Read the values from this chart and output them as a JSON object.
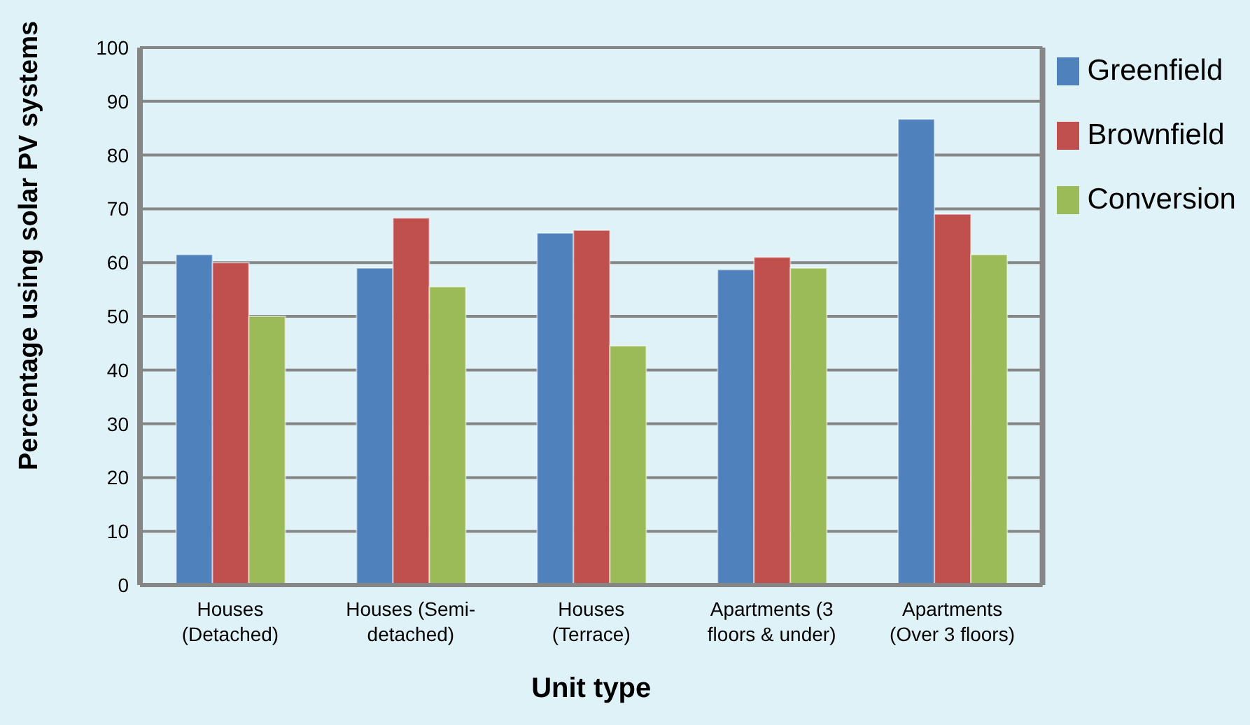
{
  "chart_data": {
    "type": "bar",
    "xlabel": "Unit type",
    "ylabel": "Percentage using solar PV systems",
    "categories": [
      "Houses (Detached)",
      "Houses (Semi-detached)",
      "Houses (Terrace)",
      "Apartments (3 floors & under)",
      "Apartments (Over 3 floors)"
    ],
    "series": [
      {
        "name": "Greenfield",
        "color": "#4f81bd",
        "values": [
          61.5,
          59,
          65.5,
          58.7,
          86.7
        ]
      },
      {
        "name": "Brownfield",
        "color": "#c0504d",
        "values": [
          60,
          68.3,
          66,
          61,
          69
        ]
      },
      {
        "name": "Conversion",
        "color": "#9bbb59",
        "values": [
          50,
          55.5,
          44.5,
          59,
          61.5
        ]
      }
    ],
    "ylim": [
      0,
      100
    ],
    "yticks": [
      0,
      10,
      20,
      30,
      40,
      50,
      60,
      70,
      80,
      90,
      100
    ],
    "grid": "y",
    "legend": "top right"
  }
}
